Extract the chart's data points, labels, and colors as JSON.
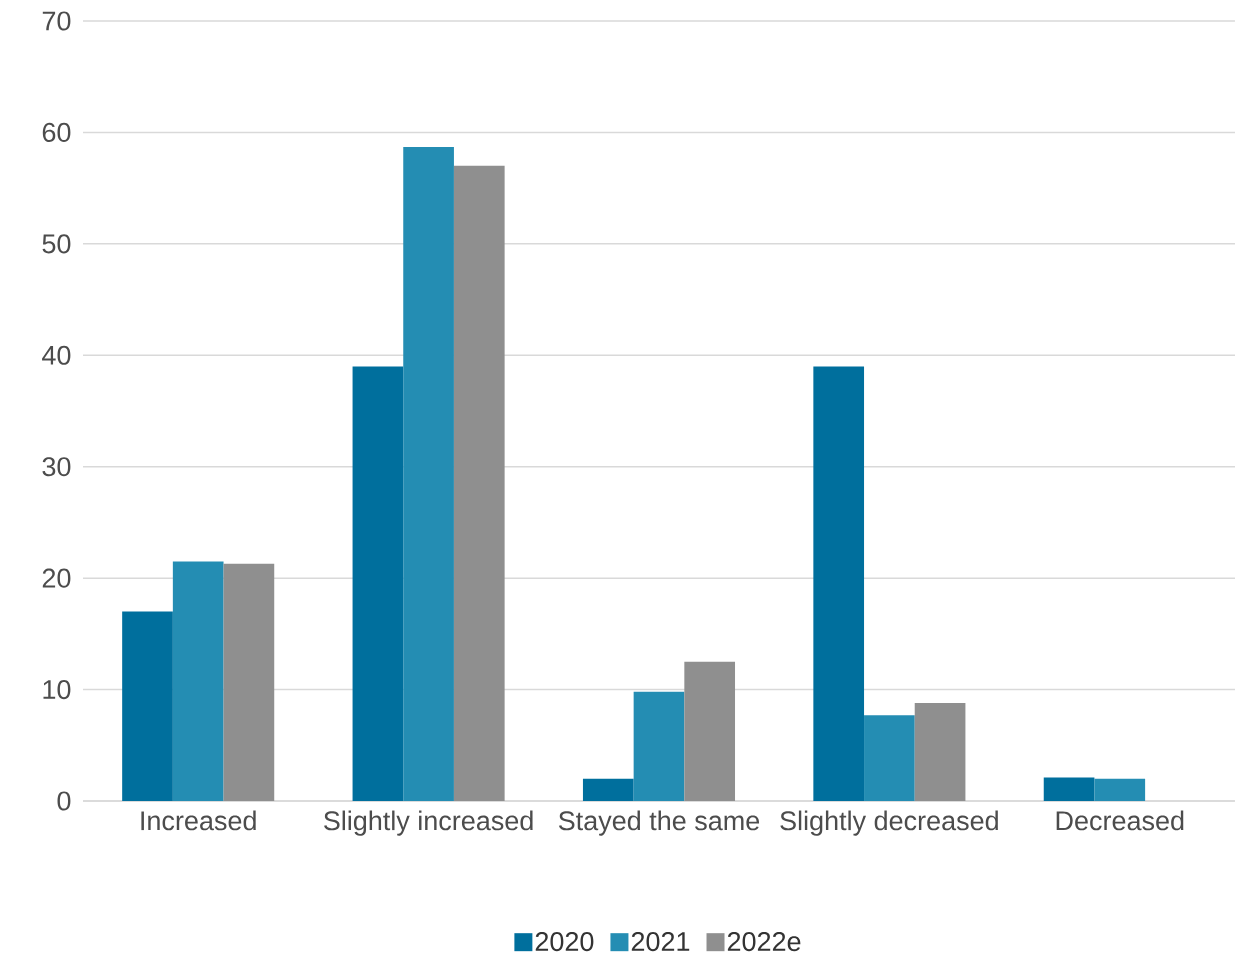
{
  "chart_data": {
    "type": "bar",
    "categories": [
      "Increased",
      "Slightly increased",
      "Stayed the same",
      "Slightly decreased",
      "Decreased"
    ],
    "series": [
      {
        "name": "2020",
        "color": "#006f9d",
        "values": [
          17,
          39,
          2,
          39,
          2.1
        ]
      },
      {
        "name": "2021",
        "color": "#248db3",
        "values": [
          21.5,
          58.7,
          9.8,
          7.7,
          2.0
        ]
      },
      {
        "name": "2022e",
        "color": "#8f8f8f",
        "values": [
          21.3,
          57,
          12.5,
          8.8,
          null
        ]
      }
    ],
    "ylim": [
      0,
      70
    ],
    "yticks": [
      0,
      10,
      20,
      30,
      40,
      50,
      60,
      70
    ],
    "grid": "y",
    "legend": "bottom"
  }
}
